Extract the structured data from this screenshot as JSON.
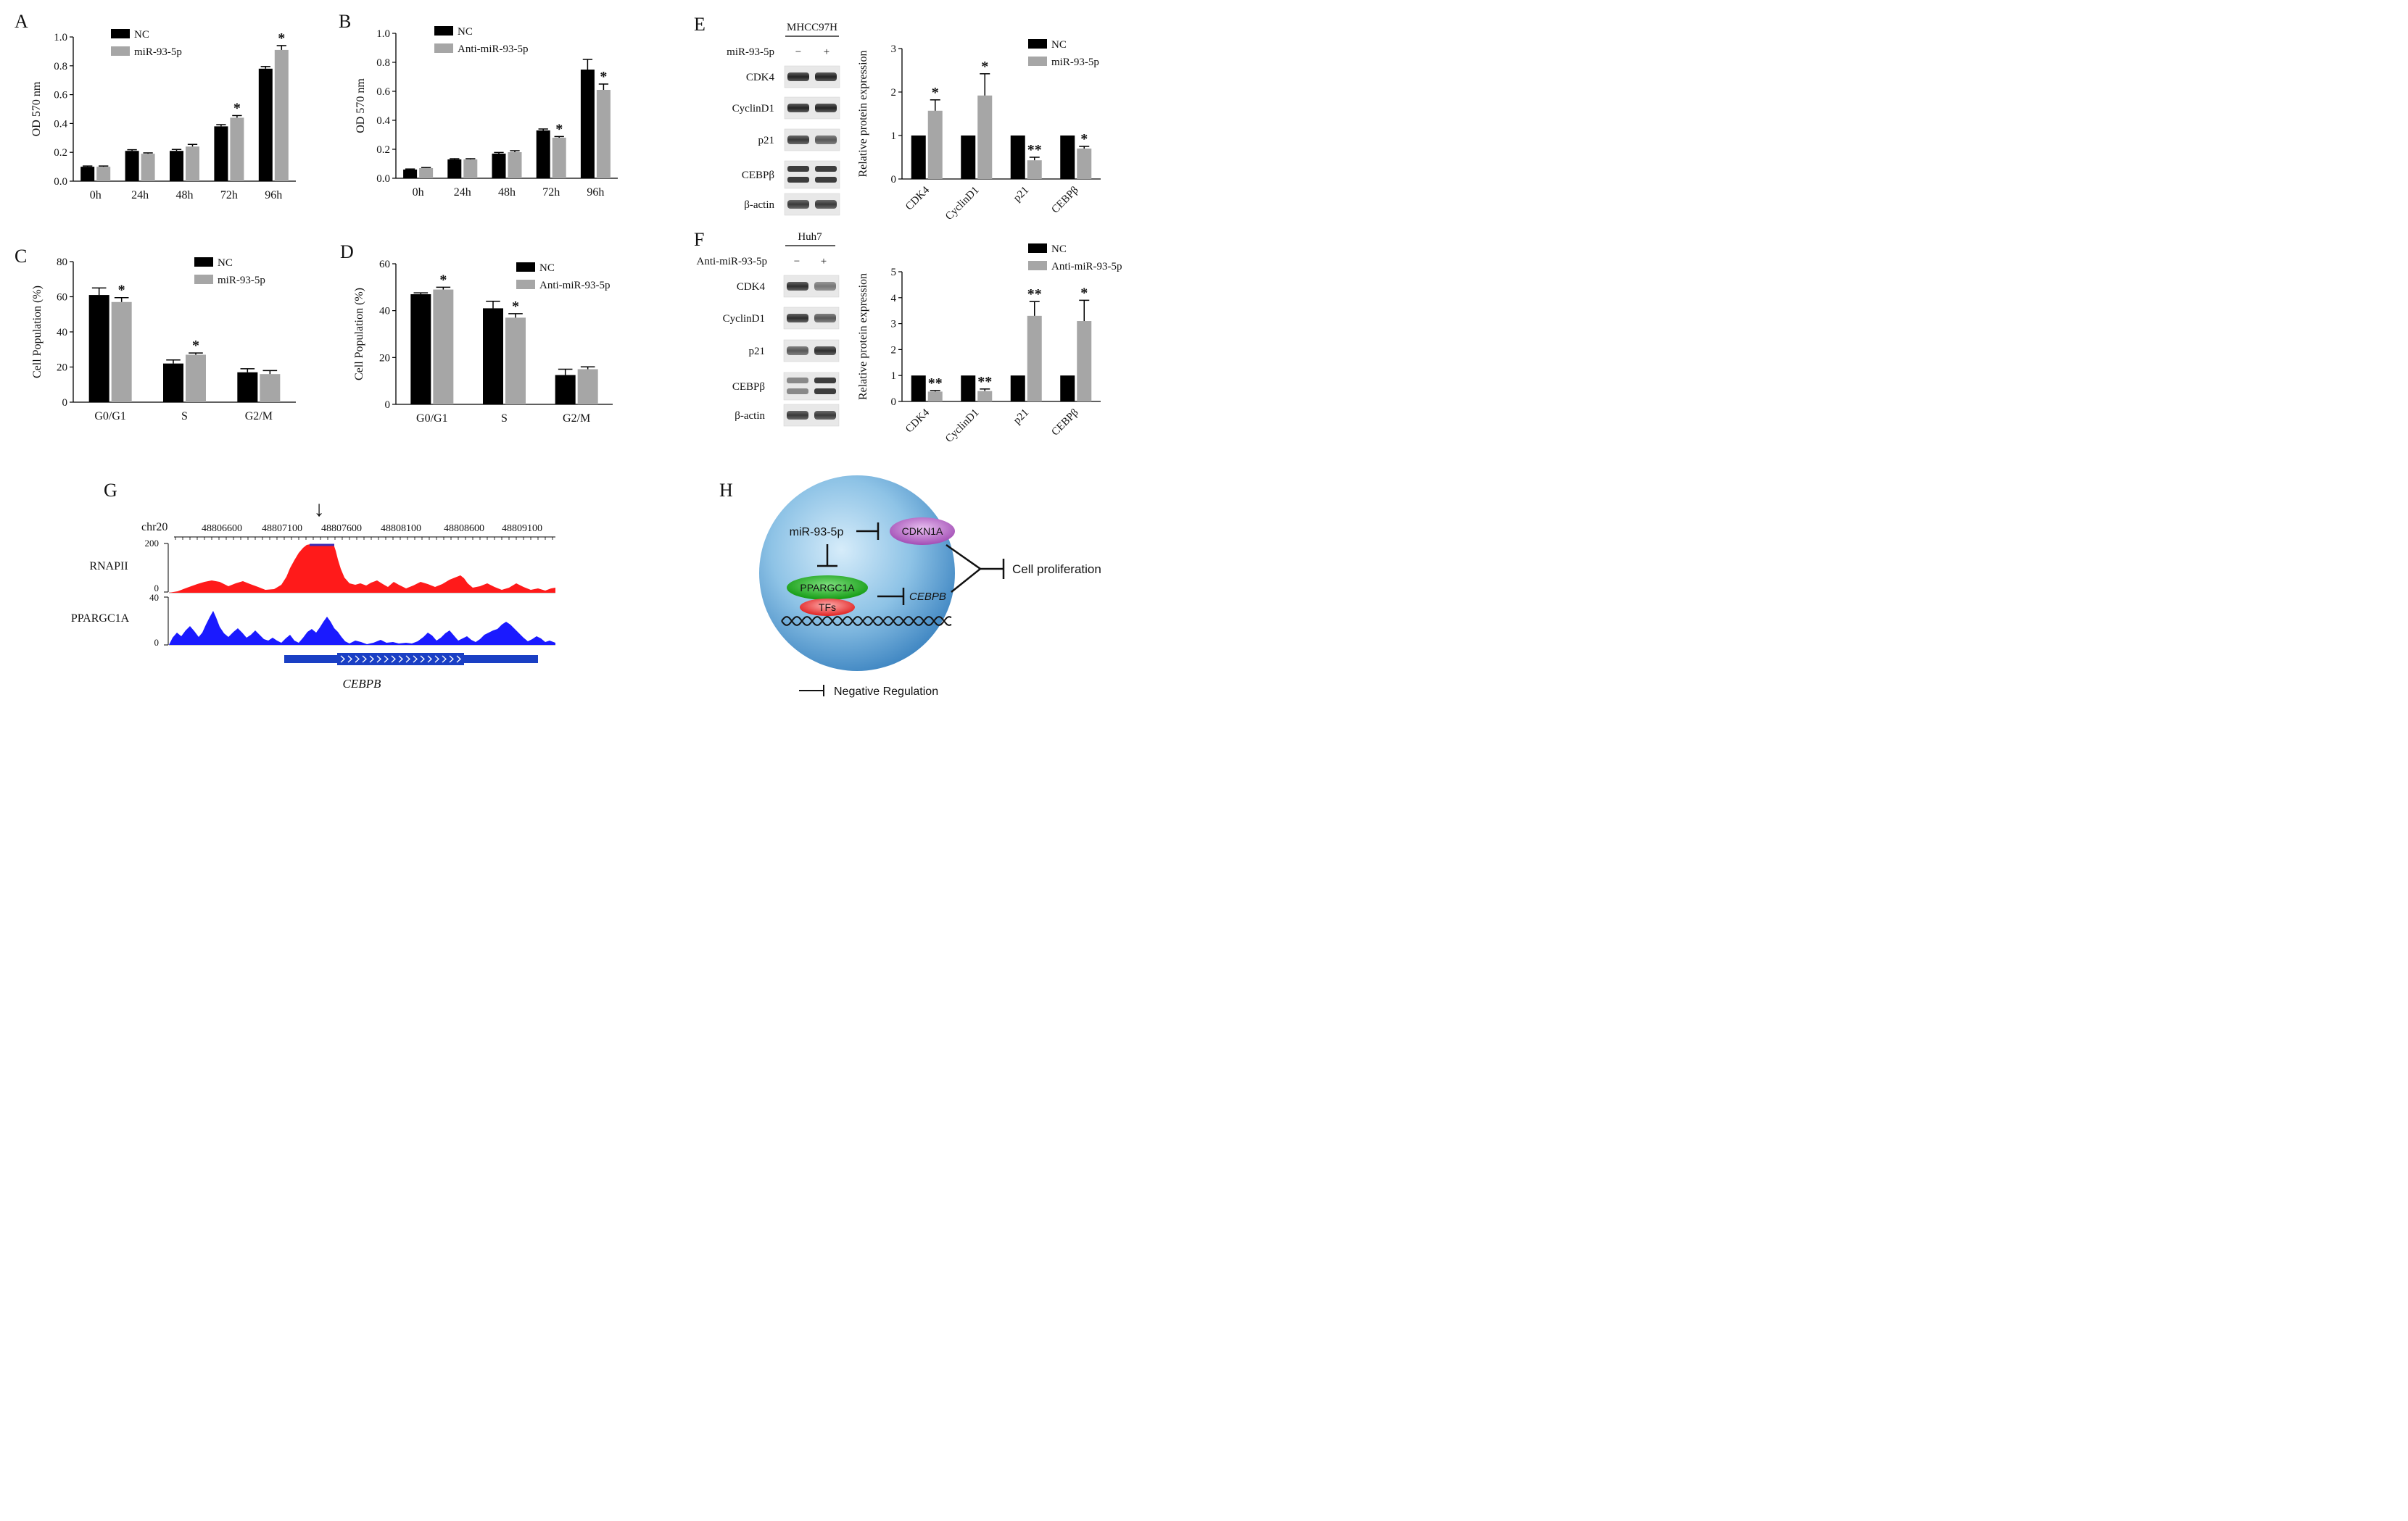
{
  "colors": {
    "nc": "#000000",
    "treat": "#a6a6a6",
    "rnapii": "#ff1a1a",
    "ppargc1a": "#1a1aff",
    "gene": "#1a3fc4"
  },
  "chart_data": [
    {
      "panel": "A",
      "type": "bar",
      "ylabel": "OD 570 nm",
      "ylim": [
        0,
        1.0
      ],
      "yticks": [
        "0.0",
        "0.2",
        "0.4",
        "0.6",
        "0.8",
        "1.0"
      ],
      "ytick_values": [
        0,
        0.2,
        0.4,
        0.6,
        0.8,
        1.0
      ],
      "categories": [
        "0h",
        "24h",
        "48h",
        "72h",
        "96h"
      ],
      "series": [
        {
          "name": "NC",
          "values": [
            0.1,
            0.21,
            0.21,
            0.38,
            0.78
          ],
          "errors": [
            0.005,
            0.008,
            0.01,
            0.012,
            0.015
          ]
        },
        {
          "name": "miR-93-5p",
          "values": [
            0.1,
            0.19,
            0.24,
            0.44,
            0.91
          ],
          "errors": [
            0.005,
            0.006,
            0.015,
            0.015,
            0.03
          ]
        }
      ],
      "annotations": [
        "",
        "",
        "",
        "*",
        "*"
      ]
    },
    {
      "panel": "B",
      "type": "bar",
      "ylabel": "OD 570 nm",
      "ylim": [
        0,
        1.0
      ],
      "yticks": [
        "0.0",
        "0.2",
        "0.4",
        "0.6",
        "0.8",
        "1.0"
      ],
      "ytick_values": [
        0,
        0.2,
        0.4,
        0.6,
        0.8,
        1.0
      ],
      "categories": [
        "0h",
        "24h",
        "48h",
        "72h",
        "96h"
      ],
      "series": [
        {
          "name": "NC",
          "values": [
            0.06,
            0.13,
            0.17,
            0.33,
            0.75
          ],
          "errors": [
            0.004,
            0.005,
            0.008,
            0.01,
            0.07
          ]
        },
        {
          "name": "Anti-miR-93-5p",
          "values": [
            0.07,
            0.13,
            0.18,
            0.28,
            0.61
          ],
          "errors": [
            0.004,
            0.005,
            0.01,
            0.008,
            0.04
          ]
        }
      ],
      "annotations": [
        "",
        "",
        "",
        "*",
        "*"
      ]
    },
    {
      "panel": "C",
      "type": "bar",
      "ylabel": "Cell Population (%)",
      "ylim": [
        0,
        80
      ],
      "yticks": [
        "0",
        "20",
        "40",
        "60",
        "80"
      ],
      "ytick_values": [
        0,
        20,
        40,
        60,
        80
      ],
      "categories": [
        "G0/G1",
        "S",
        "G2/M"
      ],
      "series": [
        {
          "name": "NC",
          "values": [
            61,
            22,
            17
          ],
          "errors": [
            4,
            2,
            2
          ]
        },
        {
          "name": "miR-93-5p",
          "values": [
            57,
            27,
            16
          ],
          "errors": [
            2.5,
            1,
            2
          ]
        }
      ],
      "annotations": [
        "*",
        "*",
        ""
      ]
    },
    {
      "panel": "D",
      "type": "bar",
      "ylabel": "Cell Population (%)",
      "ylim": [
        0,
        60
      ],
      "yticks": [
        "0",
        "20",
        "40",
        "60"
      ],
      "ytick_values": [
        0,
        20,
        40,
        60
      ],
      "categories": [
        "G0/G1",
        "S",
        "G2/M"
      ],
      "series": [
        {
          "name": "NC",
          "values": [
            47,
            41,
            12.5
          ],
          "errors": [
            0.6,
            3,
            2.5
          ]
        },
        {
          "name": "Anti-miR-93-5p",
          "values": [
            49,
            37,
            15
          ],
          "errors": [
            1,
            1.7,
            1
          ]
        }
      ],
      "annotations": [
        "*",
        "*",
        ""
      ]
    },
    {
      "panel": "E",
      "type": "bar",
      "ylabel": "Relative protein expression",
      "ylim": [
        0,
        3
      ],
      "yticks": [
        "0",
        "1",
        "2",
        "3"
      ],
      "ytick_values": [
        0,
        1,
        2,
        3
      ],
      "categories": [
        "CDK4",
        "CyclinD1",
        "p21",
        "CEBPβ"
      ],
      "series": [
        {
          "name": "NC",
          "values": [
            1,
            1,
            1,
            1
          ],
          "errors": [
            0,
            0,
            0,
            0
          ]
        },
        {
          "name": "miR-93-5p",
          "values": [
            1.57,
            1.92,
            0.43,
            0.7
          ],
          "errors": [
            0.25,
            0.5,
            0.07,
            0.05
          ]
        }
      ],
      "annotations": [
        "*",
        "*",
        "**",
        "*"
      ]
    },
    {
      "panel": "F",
      "type": "bar",
      "ylabel": "Relative protein expression",
      "ylim": [
        0,
        5
      ],
      "yticks": [
        "0",
        "1",
        "2",
        "3",
        "4",
        "5"
      ],
      "ytick_values": [
        0,
        1,
        2,
        3,
        4,
        5
      ],
      "categories": [
        "CDK4",
        "CyclinD1",
        "p21",
        "CEBPβ"
      ],
      "series": [
        {
          "name": "NC",
          "values": [
            1,
            1,
            1,
            1
          ],
          "errors": [
            0,
            0,
            0,
            0
          ]
        },
        {
          "name": "Anti-miR-93-5p",
          "values": [
            0.38,
            0.4,
            3.3,
            3.1
          ],
          "errors": [
            0.04,
            0.08,
            0.55,
            0.8
          ]
        }
      ],
      "annotations": [
        "**",
        "**",
        "**",
        "*"
      ]
    }
  ],
  "blotE": {
    "cell_line": "MHCC97H",
    "treatment_label": "miR-93-5p",
    "lanes": [
      "−",
      "+"
    ],
    "rows": [
      "CDK4",
      "CyclinD1",
      "p21",
      "CEBPβ",
      "β-actin"
    ]
  },
  "blotF": {
    "cell_line": "Huh7",
    "treatment_label": "Anti-miR-93-5p",
    "lanes": [
      "−",
      "+"
    ],
    "rows": [
      "CDK4",
      "CyclinD1",
      "p21",
      "CEBPβ",
      "β-actin"
    ]
  },
  "panelG": {
    "chrom": "chr20",
    "ticks": [
      "48806600",
      "48807100",
      "48807600",
      "48808100",
      "48808600",
      "48809100"
    ],
    "tracks": [
      {
        "name": "RNAPII",
        "max": "200",
        "min": "0"
      },
      {
        "name": "PPARGC1A",
        "max": "40",
        "min": "0"
      }
    ],
    "gene": "CEBPB",
    "arrow": "↓"
  },
  "panelH": {
    "mirna": "miR-93-5p",
    "cdkn1a": "CDKN1A",
    "ppargc1a": "PPARGC1A",
    "tfs": "TFs",
    "cebpb": "CEBPB",
    "outcome": "Cell proliferation",
    "legend": "Negative Regulation"
  },
  "panel_letters": [
    "A",
    "B",
    "C",
    "D",
    "E",
    "F",
    "G",
    "H"
  ]
}
